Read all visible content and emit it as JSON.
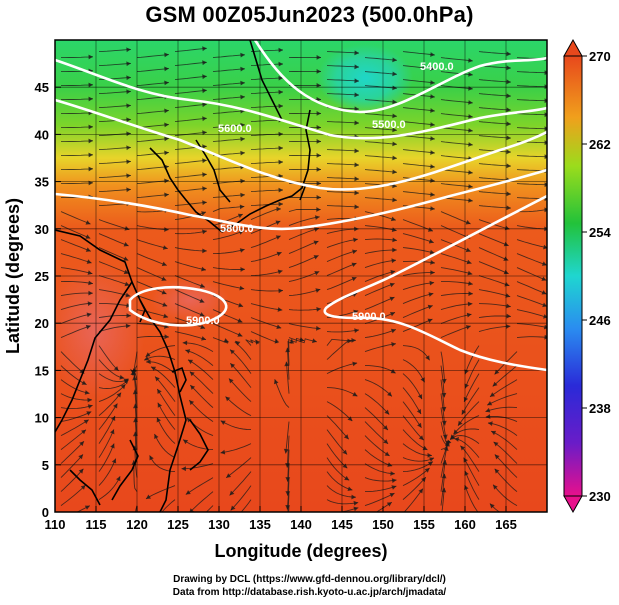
{
  "title": "GSM 00Z05Jun2023 (500.0hPa)",
  "x_axis": {
    "label": "Longitude (degrees)",
    "ticks": [
      "110",
      "115",
      "120",
      "125",
      "130",
      "135",
      "140",
      "145",
      "150",
      "155",
      "160",
      "165"
    ],
    "range": [
      110,
      170
    ]
  },
  "y_axis": {
    "label": "Latitude  (degrees)",
    "ticks": [
      "0",
      "5",
      "10",
      "15",
      "20",
      "25",
      "30",
      "35",
      "40",
      "45"
    ],
    "range": [
      0,
      50
    ]
  },
  "colorbar": {
    "ticks": [
      "270",
      "262",
      "254",
      "246",
      "238",
      "230"
    ],
    "range": [
      230,
      270
    ],
    "colors": [
      "#e8108c",
      "#3a1ccc",
      "#2a8cf0",
      "#1fd6d0",
      "#22c23a",
      "#9bdc1c",
      "#f0c01c",
      "#f07a1c",
      "#e84a1c"
    ]
  },
  "contours": [
    {
      "label": "5400.0"
    },
    {
      "label": "5500.0"
    },
    {
      "label": "5600.0"
    },
    {
      "label": "5800.0"
    },
    {
      "label": "5900.0"
    },
    {
      "label": "5900.0"
    }
  ],
  "credits": {
    "line1": "Drawing by DCL (https://www.gfd-dennou.org/library/dcl/)",
    "line2": "Data from http://database.rish.kyoto-u.ac.jp/arch/jmadata/"
  }
}
